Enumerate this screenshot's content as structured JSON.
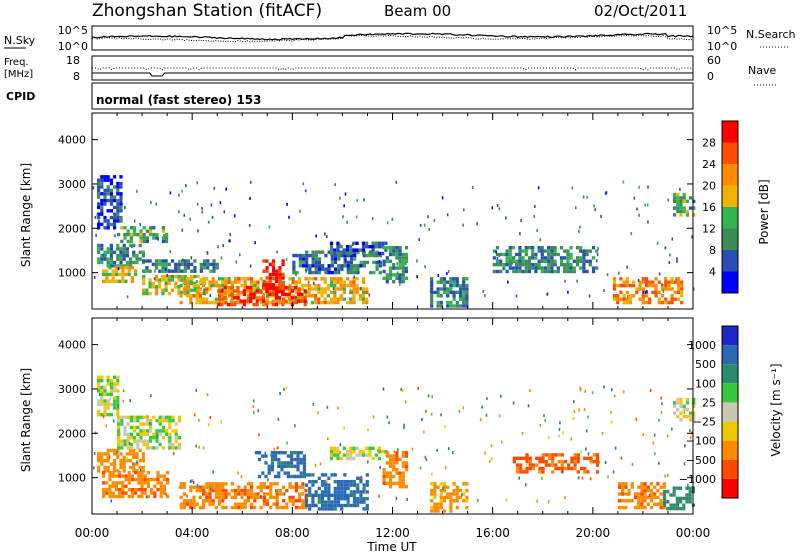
{
  "header": {
    "station": "Zhongshan Station (fitACF)",
    "beam": "Beam 00",
    "date": "02/Oct/2011"
  },
  "noise_panel": {
    "left_label": "N.Sky",
    "left_ticks": [
      "10^5",
      "10^0"
    ],
    "right_label": "N.Search",
    "right_ticks": [
      "10^5",
      "10^0"
    ]
  },
  "freq_panel": {
    "left_label_1": "Freq.",
    "left_label_2": "[MHz]",
    "left_ticks": [
      "18",
      "8"
    ],
    "right_label": "Nave",
    "right_ticks": [
      "60",
      "0"
    ]
  },
  "cpid": {
    "label": "CPID",
    "text": "normal (fast stereo) 153"
  },
  "power_panel": {
    "ylabel": "Slant Range [km]",
    "yticks": [
      "1000",
      "2000",
      "3000",
      "4000"
    ],
    "colorbar_label": "Power [dB]",
    "colorbar_ticks": [
      "4",
      "8",
      "12",
      "16",
      "20",
      "24",
      "28"
    ],
    "colors": [
      "#0000ff",
      "#2850b4",
      "#3c8c5a",
      "#32b450",
      "#f0b400",
      "#ff8c00",
      "#ff5000",
      "#ff0000"
    ]
  },
  "velocity_panel": {
    "ylabel": "Slant Range [km]",
    "yticks": [
      "1000",
      "2000",
      "3000",
      "4000"
    ],
    "colorbar_label": "Velocity [m s⁻¹]",
    "colorbar_ticks": [
      "1000",
      "500",
      "100",
      "25",
      "−25",
      "−100",
      "−500",
      "−1000"
    ],
    "colors": [
      "#1e28c8",
      "#2a6ab4",
      "#2e8c6e",
      "#3cc83c",
      "#c8c8b4",
      "#f0c800",
      "#ff8c00",
      "#ff4a00",
      "#ff0000"
    ]
  },
  "x_axis": {
    "label": "Time UT",
    "ticks": [
      "00:00",
      "04:00",
      "08:00",
      "12:00",
      "16:00",
      "20:00",
      "00:00"
    ]
  },
  "chart_data": {
    "type": "heatmap",
    "xlabel": "Time UT",
    "ylabel": "Slant Range [km]",
    "x_ticks": [
      "00:00",
      "04:00",
      "08:00",
      "12:00",
      "16:00",
      "20:00",
      "00:00"
    ],
    "xlim_hours": [
      0,
      24
    ],
    "ylim_km": [
      180,
      4600
    ],
    "panels": [
      {
        "name": "Power",
        "unit": "dB",
        "colorbar_range": [
          0,
          32
        ],
        "regions": [
          {
            "t0": 0.2,
            "t1": 2.0,
            "r0": 1150,
            "r1": 1650,
            "value": 10
          },
          {
            "t0": 0.4,
            "t1": 1.8,
            "r0": 800,
            "r1": 1150,
            "value": 18
          },
          {
            "t0": 1.0,
            "t1": 3.0,
            "r0": 1700,
            "r1": 2050,
            "value": 12
          },
          {
            "t0": 2.0,
            "t1": 5.0,
            "r0": 1000,
            "r1": 1300,
            "value": 9
          },
          {
            "t0": 2.0,
            "t1": 4.5,
            "r0": 550,
            "r1": 950,
            "value": 16
          },
          {
            "t0": 3.5,
            "t1": 11.0,
            "r0": 300,
            "r1": 900,
            "value": 20
          },
          {
            "t0": 5.0,
            "t1": 8.5,
            "r0": 300,
            "r1": 700,
            "value": 27
          },
          {
            "t0": 6.8,
            "t1": 7.6,
            "r0": 600,
            "r1": 1300,
            "value": 29
          },
          {
            "t0": 8.0,
            "t1": 11.5,
            "r0": 1000,
            "r1": 1500,
            "value": 8
          },
          {
            "t0": 9.5,
            "t1": 11.8,
            "r0": 1400,
            "r1": 1700,
            "value": 7
          },
          {
            "t0": 11.6,
            "t1": 12.6,
            "r0": 800,
            "r1": 1600,
            "value": 10
          },
          {
            "t0": 13.5,
            "t1": 15.0,
            "r0": 250,
            "r1": 900,
            "value": 9
          },
          {
            "t0": 16.0,
            "t1": 20.2,
            "r0": 1000,
            "r1": 1600,
            "value": 10
          },
          {
            "t0": 20.8,
            "t1": 23.5,
            "r0": 300,
            "r1": 900,
            "value": 23
          },
          {
            "t0": 23.2,
            "t1": 24.0,
            "r0": 2300,
            "r1": 2800,
            "value": 12
          },
          {
            "t0": 0.2,
            "t1": 1.2,
            "r0": 2000,
            "r1": 3200,
            "value": 5
          }
        ]
      },
      {
        "name": "Velocity",
        "unit": "m s^-1",
        "colorbar_range": [
          -1000,
          1000
        ],
        "regions": [
          {
            "t0": 0.2,
            "t1": 2.0,
            "r0": 1150,
            "r1": 1650,
            "value": -300
          },
          {
            "t0": 1.0,
            "t1": 3.5,
            "r0": 1700,
            "r1": 2400,
            "value": 0
          },
          {
            "t0": 0.4,
            "t1": 3.0,
            "r0": 600,
            "r1": 1150,
            "value": -400
          },
          {
            "t0": 3.5,
            "t1": 8.5,
            "r0": 300,
            "r1": 900,
            "value": -400
          },
          {
            "t0": 8.5,
            "t1": 11.0,
            "r0": 300,
            "r1": 1100,
            "value": 700
          },
          {
            "t0": 6.5,
            "t1": 8.5,
            "r0": 1000,
            "r1": 1600,
            "value": 700
          },
          {
            "t0": 9.5,
            "t1": 11.8,
            "r0": 1400,
            "r1": 1700,
            "value": 0
          },
          {
            "t0": 11.6,
            "t1": 12.6,
            "r0": 800,
            "r1": 1600,
            "value": -400
          },
          {
            "t0": 13.5,
            "t1": 15.0,
            "r0": 250,
            "r1": 900,
            "value": -150
          },
          {
            "t0": 16.8,
            "t1": 20.2,
            "r0": 1100,
            "r1": 1550,
            "value": -600
          },
          {
            "t0": 21.0,
            "t1": 22.8,
            "r0": 300,
            "r1": 900,
            "value": -400
          },
          {
            "t0": 22.8,
            "t1": 24.0,
            "r0": 300,
            "r1": 800,
            "value": 300
          },
          {
            "t0": 23.2,
            "t1": 24.0,
            "r0": 2300,
            "r1": 2800,
            "value": 0
          },
          {
            "t0": 0.2,
            "t1": 1.0,
            "r0": 2400,
            "r1": 3300,
            "value": 0
          }
        ]
      }
    ]
  }
}
